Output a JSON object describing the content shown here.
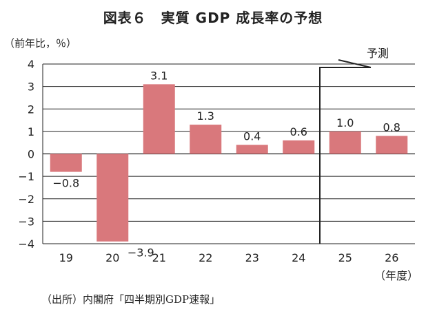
{
  "chart_data": {
    "type": "bar",
    "title": "図表６　実質 GDP 成長率の予想",
    "ylabel": "（前年比，％）",
    "xlabel": "（年度）",
    "categories": [
      "19",
      "20",
      "21",
      "22",
      "23",
      "24",
      "25",
      "26"
    ],
    "values": [
      -0.8,
      -3.9,
      3.1,
      1.3,
      0.4,
      0.6,
      1.0,
      0.8
    ],
    "data_labels": [
      "−0.8",
      "−3.9",
      "3.1",
      "1.3",
      "0.4",
      "0.6",
      "1.0",
      "0.8"
    ],
    "ylim": [
      -4,
      4
    ],
    "yticks": [
      4,
      3,
      2,
      1,
      0,
      -1,
      -2,
      -3,
      -4
    ],
    "ytick_labels": [
      "4",
      "3",
      "2",
      "1",
      "0",
      "−1",
      "−2",
      "−3",
      "−4"
    ],
    "grid": true,
    "forecast_label": "予測",
    "forecast_start_index": 6,
    "bar_color": "#d9787c",
    "source": "（出所）内閣府「四半期別GDP速報」"
  }
}
